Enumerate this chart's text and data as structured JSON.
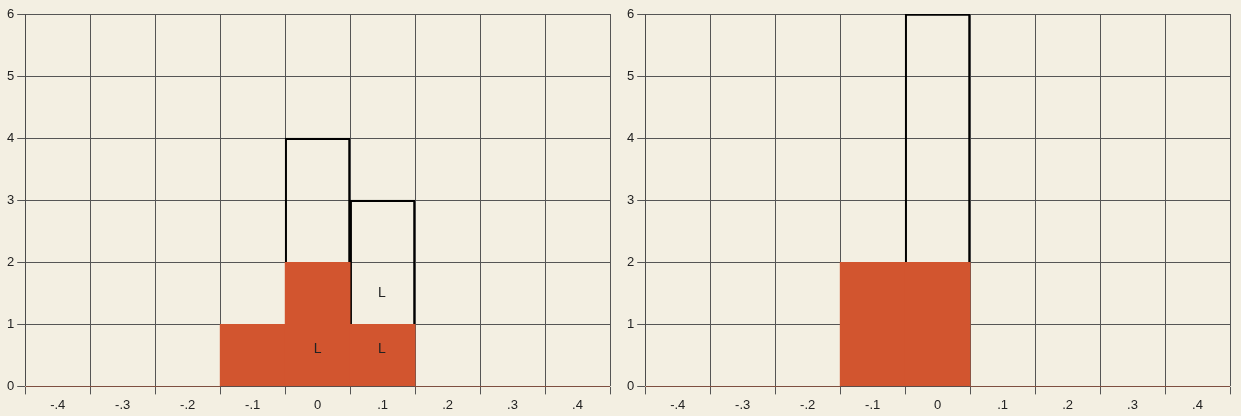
{
  "chart_data": [
    {
      "type": "bar",
      "stacked": true,
      "categories": [
        "-.4",
        "-.3",
        "-.2",
        "-.1",
        "0",
        ".1",
        ".2",
        ".3",
        ".4"
      ],
      "series": [
        {
          "color": "#d2552f",
          "values": [
            0,
            0,
            0,
            1,
            2,
            1,
            0,
            0,
            0
          ]
        },
        {
          "color": "#000000",
          "values": [
            0,
            0,
            0,
            0,
            2,
            2,
            0,
            0,
            0
          ]
        }
      ],
      "ylim": [
        0,
        6
      ],
      "yticks": [
        0,
        1,
        2,
        3,
        4,
        5,
        6
      ],
      "grid": true,
      "legend": false,
      "annotations": [
        "L",
        "L",
        "L"
      ]
    },
    {
      "type": "bar",
      "stacked": true,
      "categories": [
        "-.4",
        "-.3",
        "-.2",
        "-.1",
        "0",
        ".1",
        ".2",
        ".3",
        ".4"
      ],
      "series": [
        {
          "color": "#d2552f",
          "values": [
            0,
            0,
            0,
            2,
            2,
            0,
            0,
            0,
            0
          ]
        },
        {
          "color": "#000000",
          "values": [
            0,
            0,
            0,
            0,
            4,
            0,
            0,
            0,
            0
          ]
        }
      ],
      "ylim": [
        0,
        6
      ],
      "yticks": [
        0,
        1,
        2,
        3,
        4,
        5,
        6
      ],
      "grid": true,
      "legend": false
    }
  ]
}
